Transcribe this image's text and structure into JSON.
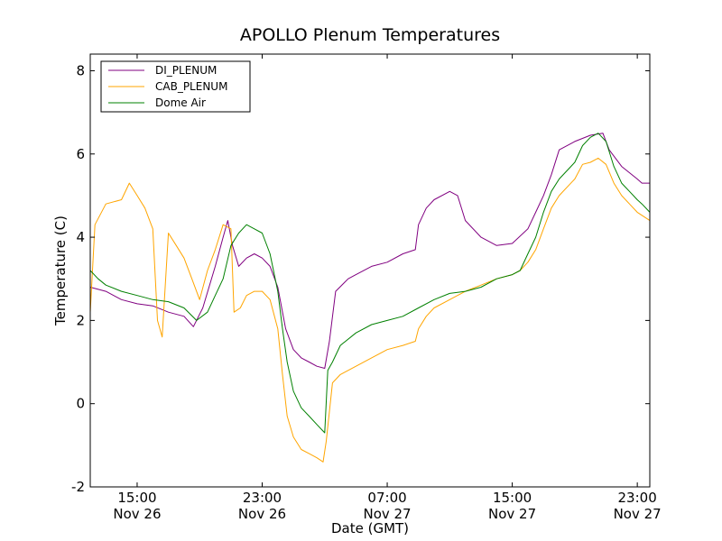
{
  "chart_data": {
    "type": "line",
    "title": "APOLLO Plenum Temperatures",
    "xlabel": "Date (GMT)",
    "ylabel": "Temperature (C)",
    "x_unit": "hours since Nov 26 00:00 GMT",
    "xlim": [
      12.0,
      47.8
    ],
    "ylim": [
      -2,
      8.4
    ],
    "yticks": [
      -2,
      0,
      2,
      4,
      6,
      8
    ],
    "ytick_labels": [
      "-2",
      "0",
      "2",
      "4",
      "6",
      "8"
    ],
    "xticks": [
      {
        "x": 15,
        "time": "15:00",
        "date": "Nov 26"
      },
      {
        "x": 23,
        "time": "23:00",
        "date": "Nov 26"
      },
      {
        "x": 31,
        "time": "07:00",
        "date": "Nov 27"
      },
      {
        "x": 39,
        "time": "15:00",
        "date": "Nov 27"
      },
      {
        "x": 47,
        "time": "23:00",
        "date": "Nov 27"
      }
    ],
    "grid": false,
    "legend_position": "top-left",
    "series": [
      {
        "name": "DI_PLENUM",
        "color": "#800080",
        "points": [
          [
            12.0,
            2.8
          ],
          [
            13.0,
            2.7
          ],
          [
            14.0,
            2.5
          ],
          [
            15.0,
            2.4
          ],
          [
            16.0,
            2.35
          ],
          [
            17.0,
            2.2
          ],
          [
            18.0,
            2.1
          ],
          [
            18.6,
            1.85
          ],
          [
            19.2,
            2.3
          ],
          [
            20.0,
            3.3
          ],
          [
            20.5,
            4.0
          ],
          [
            20.8,
            4.4
          ],
          [
            21.1,
            3.8
          ],
          [
            21.5,
            3.3
          ],
          [
            22.0,
            3.5
          ],
          [
            22.5,
            3.6
          ],
          [
            23.0,
            3.5
          ],
          [
            23.5,
            3.3
          ],
          [
            24.0,
            2.8
          ],
          [
            24.5,
            1.8
          ],
          [
            25.0,
            1.3
          ],
          [
            25.5,
            1.1
          ],
          [
            26.0,
            1.0
          ],
          [
            26.5,
            0.9
          ],
          [
            27.0,
            0.85
          ],
          [
            27.3,
            1.5
          ],
          [
            27.7,
            2.7
          ],
          [
            28.5,
            3.0
          ],
          [
            29.0,
            3.1
          ],
          [
            30.0,
            3.3
          ],
          [
            31.0,
            3.4
          ],
          [
            32.0,
            3.6
          ],
          [
            32.8,
            3.7
          ],
          [
            33.0,
            4.3
          ],
          [
            33.5,
            4.7
          ],
          [
            34.0,
            4.9
          ],
          [
            35.0,
            5.1
          ],
          [
            35.5,
            5.0
          ],
          [
            36.0,
            4.4
          ],
          [
            37.0,
            4.0
          ],
          [
            38.0,
            3.8
          ],
          [
            39.0,
            3.85
          ],
          [
            40.0,
            4.2
          ],
          [
            40.5,
            4.6
          ],
          [
            41.0,
            5.0
          ],
          [
            41.5,
            5.5
          ],
          [
            42.0,
            6.1
          ],
          [
            43.0,
            6.3
          ],
          [
            44.0,
            6.45
          ],
          [
            44.8,
            6.5
          ],
          [
            45.2,
            6.1
          ],
          [
            46.0,
            5.7
          ],
          [
            47.0,
            5.4
          ],
          [
            47.3,
            5.3
          ],
          [
            47.8,
            5.3
          ]
        ]
      },
      {
        "name": "CAB_PLENUM",
        "color": "#ffa500",
        "points": [
          [
            12.0,
            2.2
          ],
          [
            12.3,
            4.3
          ],
          [
            13.0,
            4.8
          ],
          [
            14.0,
            4.9
          ],
          [
            14.5,
            5.3
          ],
          [
            15.0,
            5.0
          ],
          [
            15.5,
            4.7
          ],
          [
            16.0,
            4.2
          ],
          [
            16.3,
            2.0
          ],
          [
            16.6,
            1.6
          ],
          [
            17.0,
            4.1
          ],
          [
            17.5,
            3.8
          ],
          [
            18.0,
            3.5
          ],
          [
            18.5,
            3.0
          ],
          [
            19.0,
            2.5
          ],
          [
            19.5,
            3.2
          ],
          [
            20.0,
            3.7
          ],
          [
            20.5,
            4.3
          ],
          [
            21.0,
            4.2
          ],
          [
            21.2,
            2.2
          ],
          [
            21.6,
            2.3
          ],
          [
            22.0,
            2.6
          ],
          [
            22.5,
            2.7
          ],
          [
            23.0,
            2.7
          ],
          [
            23.5,
            2.5
          ],
          [
            24.0,
            1.8
          ],
          [
            24.3,
            0.7
          ],
          [
            24.6,
            -0.3
          ],
          [
            25.0,
            -0.8
          ],
          [
            25.5,
            -1.1
          ],
          [
            26.0,
            -1.2
          ],
          [
            26.5,
            -1.3
          ],
          [
            26.9,
            -1.4
          ],
          [
            27.1,
            -0.9
          ],
          [
            27.5,
            0.5
          ],
          [
            28.0,
            0.7
          ],
          [
            29.0,
            0.9
          ],
          [
            30.0,
            1.1
          ],
          [
            31.0,
            1.3
          ],
          [
            32.0,
            1.4
          ],
          [
            32.8,
            1.5
          ],
          [
            33.0,
            1.8
          ],
          [
            33.5,
            2.1
          ],
          [
            34.0,
            2.3
          ],
          [
            35.0,
            2.5
          ],
          [
            36.0,
            2.7
          ],
          [
            37.0,
            2.85
          ],
          [
            38.0,
            3.0
          ],
          [
            39.0,
            3.1
          ],
          [
            39.5,
            3.2
          ],
          [
            40.0,
            3.4
          ],
          [
            40.5,
            3.7
          ],
          [
            41.0,
            4.2
          ],
          [
            41.5,
            4.7
          ],
          [
            42.0,
            5.0
          ],
          [
            43.0,
            5.4
          ],
          [
            43.5,
            5.75
          ],
          [
            44.0,
            5.8
          ],
          [
            44.5,
            5.9
          ],
          [
            45.0,
            5.75
          ],
          [
            45.5,
            5.3
          ],
          [
            46.0,
            5.0
          ],
          [
            46.5,
            4.8
          ],
          [
            47.0,
            4.6
          ],
          [
            47.8,
            4.4
          ]
        ]
      },
      {
        "name": "Dome Air",
        "color": "#008000",
        "points": [
          [
            12.0,
            3.2
          ],
          [
            12.5,
            3.0
          ],
          [
            13.0,
            2.85
          ],
          [
            14.0,
            2.7
          ],
          [
            15.0,
            2.6
          ],
          [
            16.0,
            2.5
          ],
          [
            17.0,
            2.45
          ],
          [
            18.0,
            2.3
          ],
          [
            18.8,
            2.0
          ],
          [
            19.5,
            2.2
          ],
          [
            20.0,
            2.6
          ],
          [
            20.5,
            3.0
          ],
          [
            21.0,
            3.8
          ],
          [
            21.5,
            4.1
          ],
          [
            22.0,
            4.3
          ],
          [
            22.5,
            4.2
          ],
          [
            23.0,
            4.1
          ],
          [
            23.5,
            3.6
          ],
          [
            24.0,
            2.7
          ],
          [
            24.3,
            1.8
          ],
          [
            24.6,
            1.0
          ],
          [
            25.0,
            0.3
          ],
          [
            25.5,
            -0.1
          ],
          [
            26.0,
            -0.3
          ],
          [
            26.5,
            -0.5
          ],
          [
            27.0,
            -0.7
          ],
          [
            27.2,
            0.8
          ],
          [
            27.5,
            1.0
          ],
          [
            28.0,
            1.4
          ],
          [
            29.0,
            1.7
          ],
          [
            30.0,
            1.9
          ],
          [
            31.0,
            2.0
          ],
          [
            32.0,
            2.1
          ],
          [
            33.0,
            2.3
          ],
          [
            34.0,
            2.5
          ],
          [
            35.0,
            2.65
          ],
          [
            36.0,
            2.7
          ],
          [
            37.0,
            2.8
          ],
          [
            38.0,
            3.0
          ],
          [
            39.0,
            3.1
          ],
          [
            39.5,
            3.2
          ],
          [
            40.0,
            3.6
          ],
          [
            40.5,
            4.0
          ],
          [
            41.0,
            4.6
          ],
          [
            41.5,
            5.1
          ],
          [
            42.0,
            5.4
          ],
          [
            43.0,
            5.8
          ],
          [
            43.5,
            6.2
          ],
          [
            44.0,
            6.4
          ],
          [
            44.5,
            6.5
          ],
          [
            45.0,
            6.3
          ],
          [
            45.5,
            5.7
          ],
          [
            46.0,
            5.3
          ],
          [
            46.5,
            5.1
          ],
          [
            47.0,
            4.9
          ],
          [
            47.3,
            4.8
          ],
          [
            47.8,
            4.6
          ]
        ]
      }
    ]
  }
}
